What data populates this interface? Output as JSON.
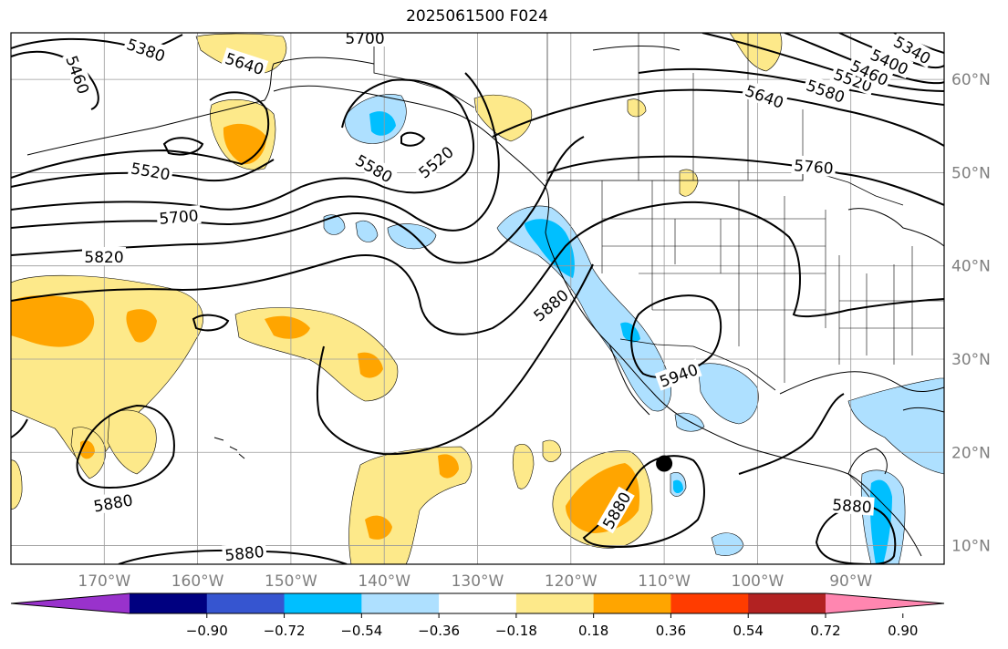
{
  "title": "2025061500 F024",
  "map": {
    "lon_range": [
      -180,
      -80
    ],
    "lat_range": [
      8,
      65
    ],
    "grid_step_deg": 10,
    "lon_labels": [
      "170°W",
      "160°W",
      "150°W",
      "140°W",
      "130°W",
      "120°W",
      "110°W",
      "100°W",
      "90°W"
    ],
    "lat_labels": [
      "10°N",
      "20°N",
      "30°N",
      "40°N",
      "50°N",
      "60°N"
    ],
    "contour_labels": [
      "5380",
      "5700",
      "5640",
      "5460",
      "5520",
      "5580",
      "5520",
      "5700",
      "5820",
      "5880",
      "5940",
      "5880",
      "5880",
      "5880",
      "5880",
      "5640",
      "5580",
      "5520",
      "5460",
      "5400",
      "5340",
      "5760"
    ],
    "storm_marker": {
      "lon": -110,
      "lat": 18.8
    },
    "fill_colors": {
      "positive_light": "#fde98a",
      "positive_strong": "#ffa500",
      "negative_light": "#aee0ff",
      "negative_strong": "#00bfff"
    }
  },
  "colorbar": {
    "colors": [
      "#9932cc",
      "#000080",
      "#3655d0",
      "#00bfff",
      "#aee0ff",
      "#ffffff",
      "#fde98a",
      "#ffa500",
      "#ff3c00",
      "#b22222",
      "#ff86b0"
    ],
    "ticks": [
      "−0.90",
      "−0.72",
      "−0.54",
      "−0.36",
      "−0.18",
      "0.18",
      "0.36",
      "0.54",
      "0.72",
      "0.90"
    ]
  }
}
